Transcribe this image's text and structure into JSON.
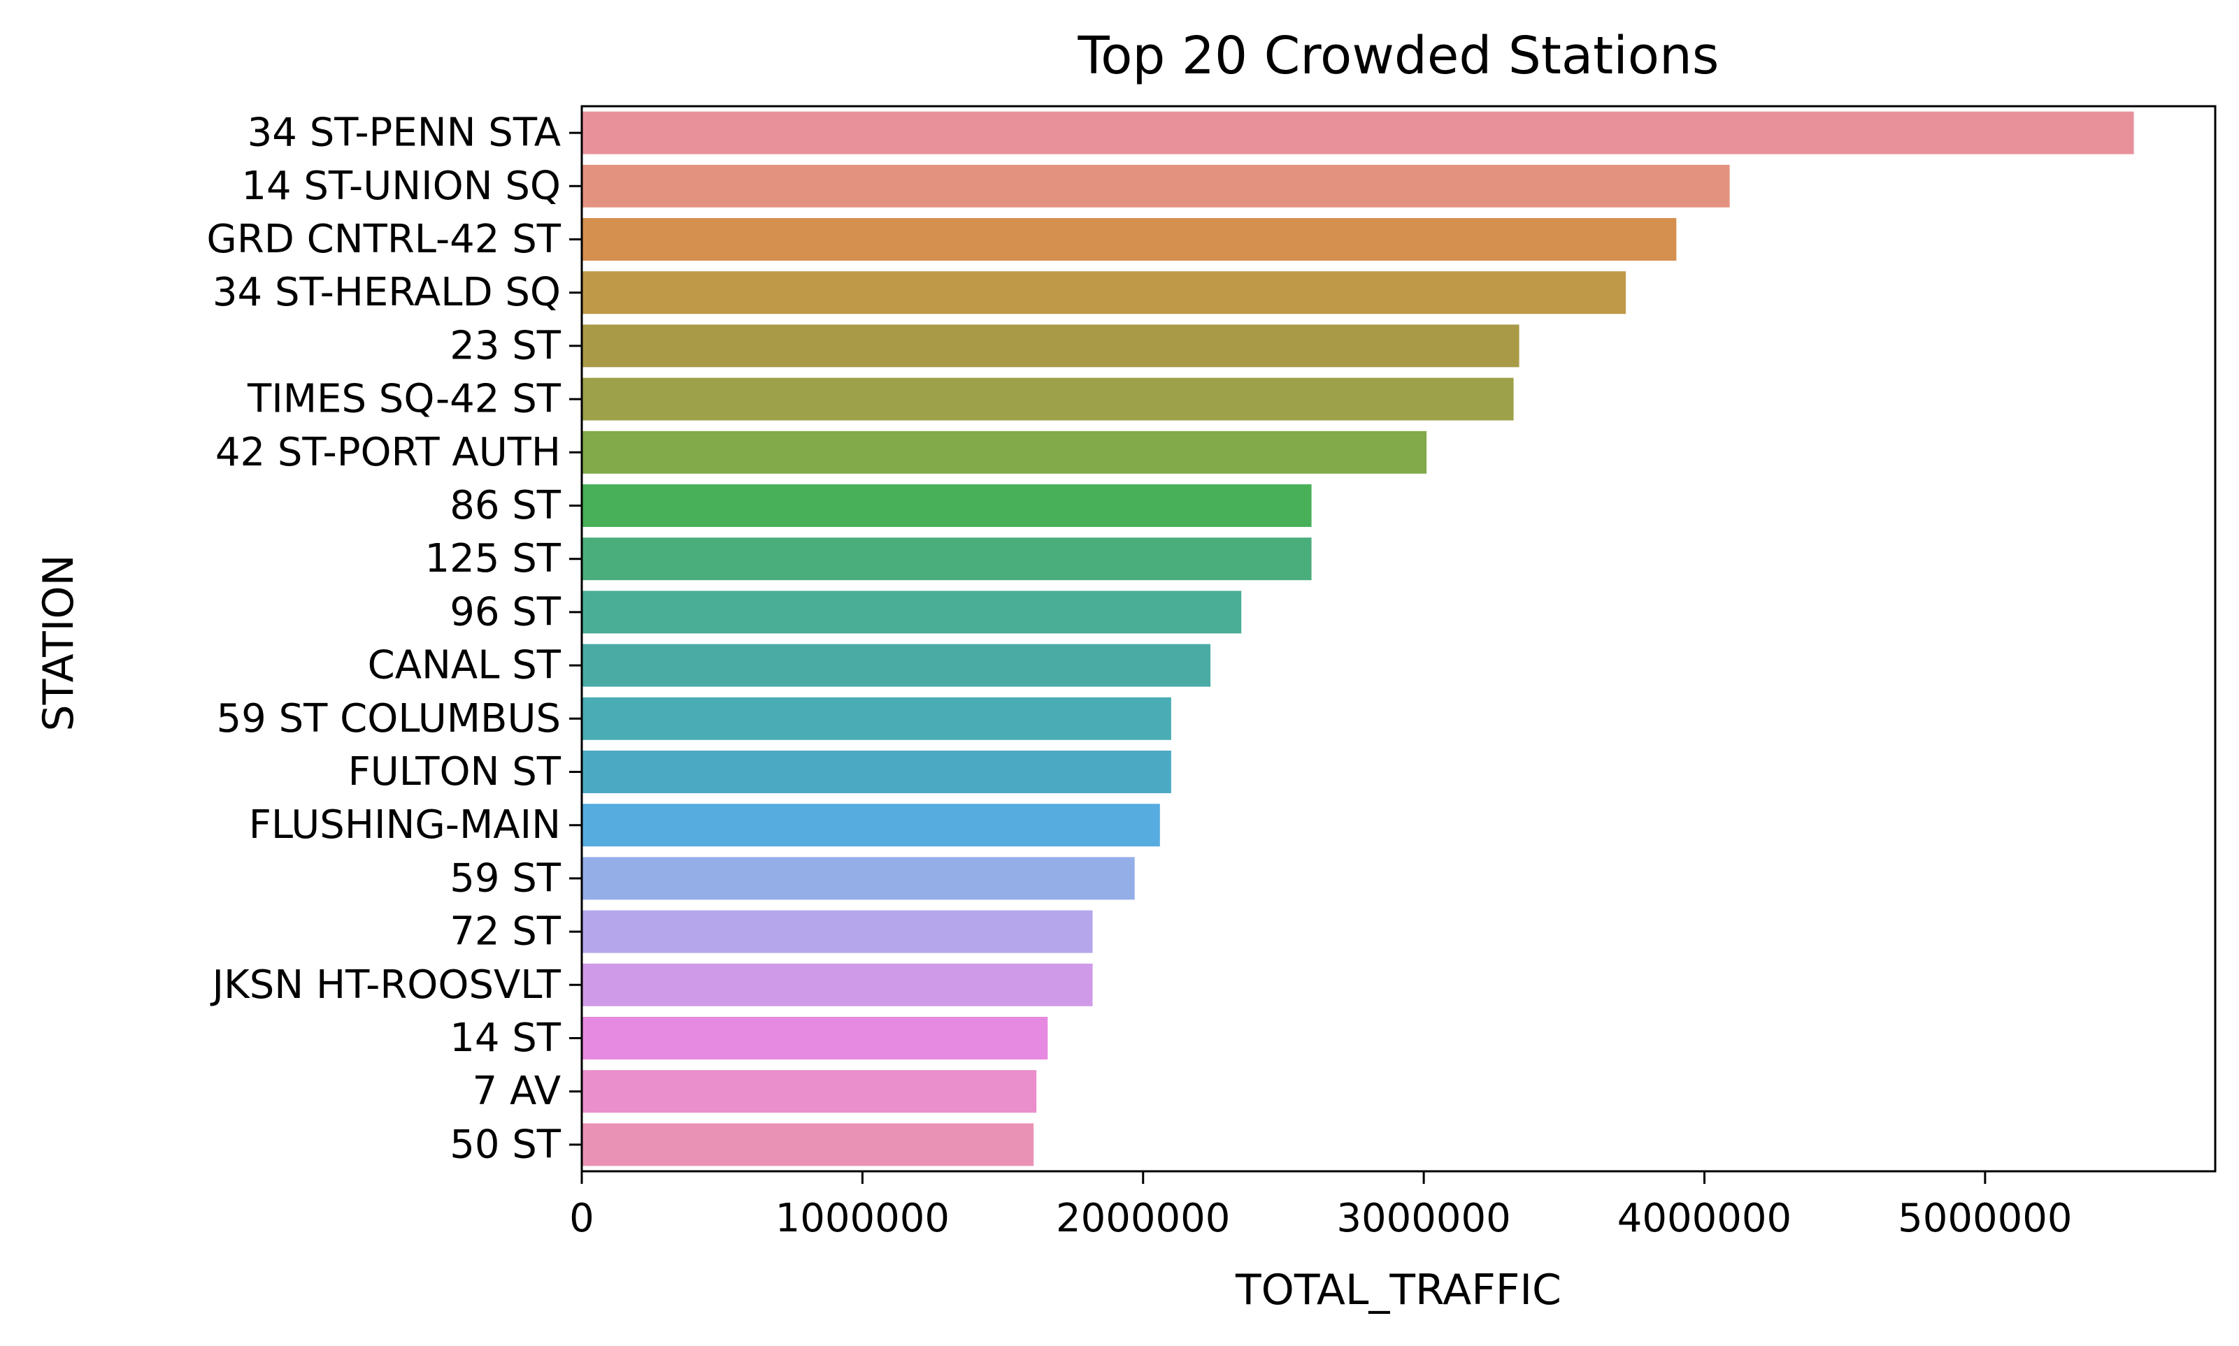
{
  "chart_data": {
    "type": "bar",
    "orientation": "horizontal",
    "title": "Top 20 Crowded Stations",
    "xlabel": "TOTAL_TRAFFIC",
    "ylabel": "STATION",
    "xlim": [
      0,
      5820000
    ],
    "xticks": [
      0,
      1000000,
      2000000,
      3000000,
      4000000,
      5000000
    ],
    "xtick_labels": [
      "0",
      "1000000",
      "2000000",
      "3000000",
      "4000000",
      "5000000"
    ],
    "grid": false,
    "legend": "none",
    "categories": [
      "34 ST-PENN STA",
      "14 ST-UNION SQ",
      "GRD CNTRL-42 ST",
      "34 ST-HERALD SQ",
      "23 ST",
      "TIMES SQ-42 ST",
      "42 ST-PORT AUTH",
      "86 ST",
      "125 ST",
      "96 ST",
      "CANAL ST",
      "59 ST COLUMBUS",
      "FULTON ST",
      "FLUSHING-MAIN",
      "59 ST",
      "72 ST",
      "JKSN HT-ROOSVLT",
      "14 ST",
      "7 AV",
      "50 ST"
    ],
    "values": [
      5530000,
      4090000,
      3900000,
      3720000,
      3340000,
      3320000,
      3010000,
      2600000,
      2600000,
      2350000,
      2240000,
      2100000,
      2100000,
      2060000,
      1970000,
      1820000,
      1820000,
      1660000,
      1620000,
      1610000
    ],
    "colors": [
      "#e8919b",
      "#e49280",
      "#d58f4f",
      "#bf9948",
      "#a99a48",
      "#9ca14a",
      "#82a94a",
      "#48b058",
      "#4aae7c",
      "#49ae95",
      "#4aaba5",
      "#4aacb4",
      "#4ba9c3",
      "#57acdf",
      "#94aee8",
      "#b5a6ec",
      "#cf9ae8",
      "#e689e0",
      "#ea8fcb",
      "#ea92b6"
    ]
  }
}
